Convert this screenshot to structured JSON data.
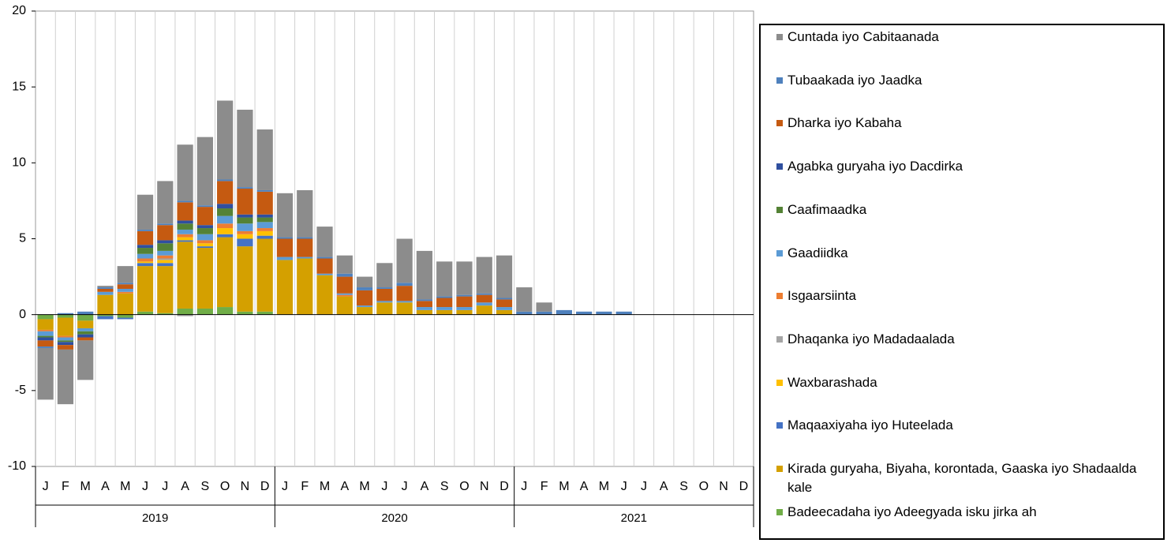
{
  "chart_data": {
    "type": "bar",
    "stacked": true,
    "categories": [
      "J",
      "F",
      "M",
      "A",
      "M",
      "J",
      "J",
      "A",
      "S",
      "O",
      "N",
      "D",
      "J",
      "F",
      "M",
      "A",
      "M",
      "J",
      "J",
      "A",
      "S",
      "O",
      "N",
      "D",
      "J",
      "F",
      "M",
      "A",
      "M",
      "J",
      "J",
      "A",
      "S",
      "O",
      "N",
      "D"
    ],
    "year_groups": [
      "2019",
      "2020",
      "2021"
    ],
    "ylim": [
      -10,
      20
    ],
    "yticks": [
      -10,
      -5,
      0,
      5,
      10,
      15,
      20
    ],
    "series": [
      {
        "name": "Cuntada iyo Cabitaanada",
        "color": "#8c8c8c",
        "values": [
          -3.4,
          -3.6,
          -2.6,
          0.1,
          1.1,
          2.3,
          2.8,
          3.7,
          4.5,
          5.2,
          5.1,
          4.0,
          2.9,
          3.1,
          2.0,
          1.2,
          0.7,
          1.6,
          2.9,
          3.2,
          2.3,
          2.2,
          2.4,
          2.8,
          1.6,
          0.6,
          0,
          0,
          0,
          0,
          null,
          null,
          null,
          null,
          null,
          null
        ]
      },
      {
        "name": "Tubaakada iyo Jaadka",
        "color": "#4f81bd",
        "values": [
          -0.1,
          0.1,
          0.2,
          0.1,
          0.1,
          0.1,
          0.1,
          0.1,
          0.1,
          0.1,
          0.1,
          0.1,
          0.1,
          0.1,
          0.1,
          0.2,
          0.2,
          0.1,
          0.2,
          0.1,
          0.1,
          0.1,
          0.1,
          0.1,
          0.2,
          0.2,
          0.3,
          0.2,
          0.2,
          0.2,
          null,
          null,
          null,
          null,
          null,
          null
        ]
      },
      {
        "name": "Dharka iyo Kabaha",
        "color": "#c55a11",
        "values": [
          -0.4,
          -0.3,
          -0.2,
          0.2,
          0.3,
          0.9,
          1.0,
          1.2,
          1.2,
          1.5,
          1.7,
          1.5,
          1.2,
          1.2,
          1.0,
          1.1,
          1.0,
          0.8,
          1.0,
          0.4,
          0.6,
          0.7,
          0.5,
          0.5,
          0,
          0,
          0,
          0,
          0,
          0,
          null,
          null,
          null,
          null,
          null,
          null
        ]
      },
      {
        "name": "Agabka guryaha iyo Dacdirka",
        "color": "#2f4f9f",
        "values": [
          -0.2,
          -0.2,
          -0.2,
          0,
          0,
          0.2,
          0.2,
          0.2,
          0.2,
          0.3,
          0.2,
          0.2,
          0,
          0,
          0,
          0,
          0,
          0,
          0,
          0,
          0,
          0,
          0,
          0,
          0,
          0,
          0,
          0,
          0,
          0,
          null,
          null,
          null,
          null,
          null,
          null
        ]
      },
      {
        "name": "Caafimaadka",
        "color": "#548235",
        "values": [
          -0.1,
          -0.1,
          -0.2,
          0,
          0,
          0.4,
          0.5,
          0.4,
          0.4,
          0.5,
          0.4,
          0.3,
          0,
          0,
          0,
          0,
          0,
          0,
          0,
          0,
          0,
          0,
          0,
          0,
          0,
          0,
          0,
          0,
          0,
          0,
          null,
          null,
          null,
          null,
          null,
          null
        ]
      },
      {
        "name": "Gaadiidka",
        "color": "#5b9bd5",
        "values": [
          -0.3,
          -0.2,
          -0.2,
          0.2,
          0.2,
          0.3,
          0.3,
          0.3,
          0.4,
          0.5,
          0.5,
          0.4,
          0.2,
          0.1,
          0.1,
          0.1,
          0.1,
          0.1,
          0.1,
          0.2,
          0.2,
          0.2,
          0.2,
          0.2,
          0,
          0,
          0,
          0,
          0,
          0,
          null,
          null,
          null,
          null,
          null,
          null
        ]
      },
      {
        "name": "Isgaarsiinta",
        "color": "#ed7d31",
        "values": [
          -0.1,
          -0.1,
          0,
          0,
          0.1,
          0.2,
          0.2,
          0.2,
          0.2,
          0.3,
          0.2,
          0.2,
          0,
          0,
          0,
          0.1,
          0,
          0,
          0,
          0,
          0,
          0,
          0,
          0,
          0,
          0,
          0,
          0,
          0,
          0,
          null,
          null,
          null,
          null,
          null,
          null
        ]
      },
      {
        "name": "Dhaqanka iyo Madadaalada",
        "color": "#a5a5a5",
        "values": [
          0,
          0,
          0,
          0,
          0,
          0,
          0.1,
          -0.1,
          0,
          0,
          0,
          0,
          0,
          0,
          0,
          0,
          0,
          0,
          0,
          0,
          0,
          0,
          0,
          0,
          0,
          0,
          0,
          0,
          0,
          0,
          null,
          null,
          null,
          null,
          null,
          null
        ]
      },
      {
        "name": "Waxbarashada",
        "color": "#ffc000",
        "values": [
          0,
          0,
          0,
          0,
          0,
          0.1,
          0.2,
          0.2,
          0.2,
          0.4,
          0.3,
          0.3,
          0,
          0,
          0,
          0,
          0,
          0,
          0,
          0,
          0,
          0,
          0,
          0,
          0,
          0,
          0,
          0,
          0,
          0,
          null,
          null,
          null,
          null,
          null,
          null
        ]
      },
      {
        "name": "Maqaaxiyaha iyo Huteelada",
        "color": "#4472c4",
        "values": [
          0,
          0,
          0,
          -0.2,
          -0.1,
          0.2,
          0.2,
          0.1,
          0.1,
          0.2,
          0.5,
          0.2,
          0,
          0,
          0,
          0,
          0,
          0,
          0,
          0,
          0,
          0,
          0,
          0,
          0,
          0,
          0,
          0,
          0,
          0,
          null,
          null,
          null,
          null,
          null,
          null
        ]
      },
      {
        "name": "Kirada guryaha, Biyaha, korontada, Gaaska iyo Shadaalda kale",
        "color": "#d4a000",
        "values": [
          -0.7,
          -1.2,
          -0.5,
          1.3,
          1.4,
          3.0,
          3.1,
          4.4,
          4.0,
          4.6,
          4.3,
          4.8,
          3.6,
          3.7,
          2.6,
          1.2,
          0.5,
          0.8,
          0.8,
          0.3,
          0.3,
          0.3,
          0.6,
          0.3,
          0,
          0,
          0,
          0,
          0,
          0,
          null,
          null,
          null,
          null,
          null,
          null
        ]
      },
      {
        "name": "Badeecadaha iyo Adeegyada isku jirka ah",
        "color": "#70ad47",
        "values": [
          -0.3,
          -0.2,
          -0.4,
          -0.1,
          -0.2,
          0.2,
          0.1,
          0.4,
          0.4,
          0.5,
          0.2,
          0.2,
          0,
          0,
          0,
          0,
          0,
          0,
          0,
          0,
          0,
          0,
          0,
          0,
          0,
          0,
          0,
          0,
          0,
          0,
          null,
          null,
          null,
          null,
          null,
          null
        ]
      }
    ]
  }
}
